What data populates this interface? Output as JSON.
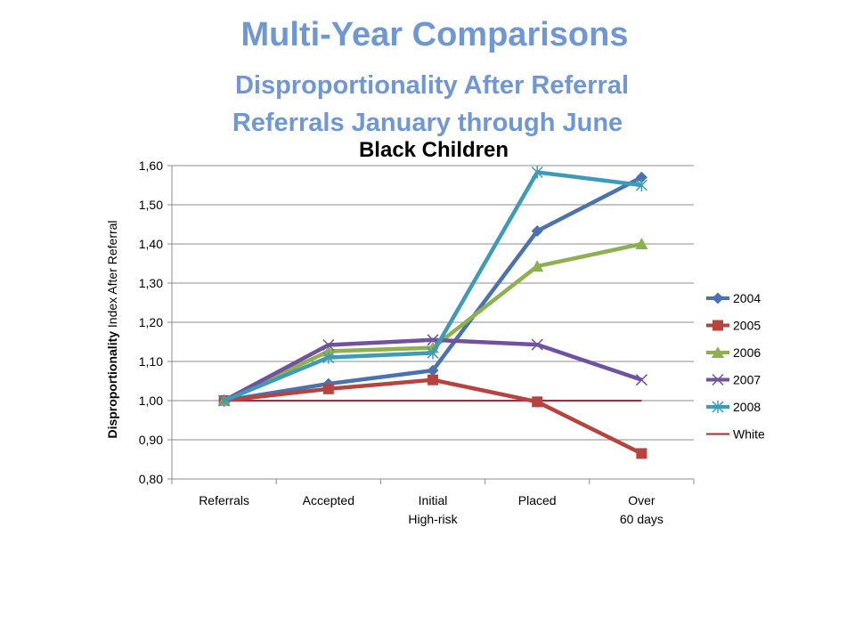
{
  "slide": {
    "title": "Multi-Year Comparisons",
    "subtitle1": "Disproportionality After Referral",
    "subtitle2": "Referrals January through June"
  },
  "chart_data": {
    "type": "line",
    "title": "Black Children",
    "ylabel_bold": "Disproportionality",
    "ylabel_rest": " Index After Referral",
    "ylim": [
      0.8,
      1.6
    ],
    "y_step": 0.1,
    "y_tick_labels": [
      "0,80",
      "0,90",
      "1,00",
      "1,10",
      "1,20",
      "1,30",
      "1,40",
      "1,50",
      "1,60"
    ],
    "grid": true,
    "legend_position": "right",
    "categories": [
      [
        "Referrals"
      ],
      [
        "Accepted"
      ],
      [
        "Initial",
        "High-risk"
      ],
      [
        "Placed"
      ],
      [
        "Over",
        "60 days"
      ]
    ],
    "series": [
      {
        "name": "2004",
        "color": "#4a72b0",
        "marker": "diamond",
        "values": [
          1.0,
          1.043,
          1.077,
          1.433,
          1.57
        ]
      },
      {
        "name": "2005",
        "color": "#b8423e",
        "marker": "square",
        "values": [
          1.0,
          1.03,
          1.053,
          0.997,
          0.865
        ]
      },
      {
        "name": "2006",
        "color": "#8db14e",
        "marker": "triangle",
        "values": [
          1.0,
          1.126,
          1.135,
          1.343,
          1.4
        ]
      },
      {
        "name": "2007",
        "color": "#7052a0",
        "marker": "x",
        "values": [
          1.0,
          1.142,
          1.155,
          1.143,
          1.053
        ]
      },
      {
        "name": "2008",
        "color": "#3e9bb8",
        "marker": "star",
        "values": [
          1.0,
          1.11,
          1.122,
          1.583,
          1.55
        ]
      },
      {
        "name": "White",
        "color": "#c0202a",
        "marker": "none",
        "values": [
          1.0,
          1.0,
          1.0,
          1.0,
          1.0
        ]
      }
    ]
  }
}
